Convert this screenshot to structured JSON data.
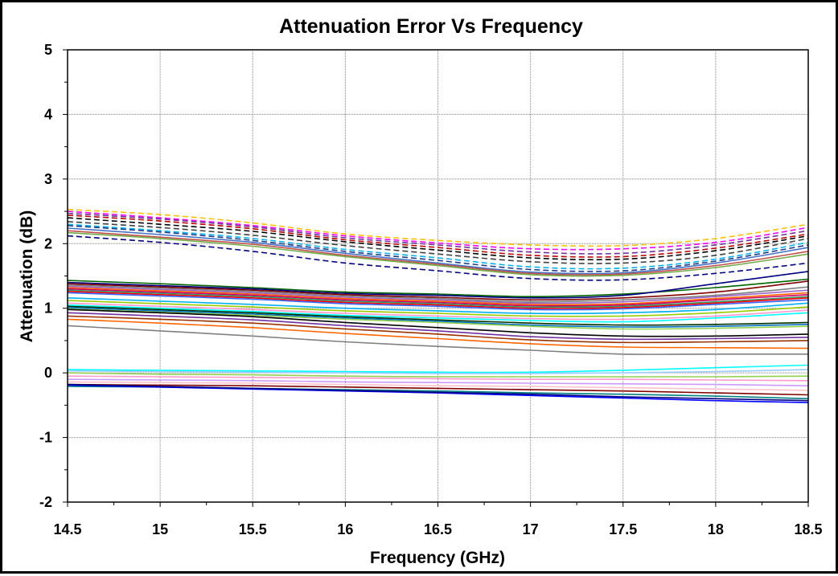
{
  "chart_data": {
    "type": "line",
    "title": "Attenuation Error Vs Frequency",
    "xlabel": "Frequency (GHz)",
    "ylabel": "Attenuation (dB)",
    "xlim": [
      14.5,
      18.5
    ],
    "ylim": [
      -2,
      5
    ],
    "x_ticks": [
      "14.5",
      "15",
      "15.5",
      "16",
      "16.5",
      "17",
      "17.5",
      "18",
      "18.5"
    ],
    "y_ticks": [
      "-2",
      "-1",
      "0",
      "1",
      "2",
      "3",
      "4",
      "5"
    ],
    "grid": true,
    "x": [
      14.5,
      15,
      15.5,
      16,
      16.5,
      17,
      17.5,
      18,
      18.5
    ],
    "series": [
      {
        "color": "#FFC000",
        "dash": true,
        "values": [
          2.53,
          2.45,
          2.32,
          2.15,
          2.05,
          1.98,
          1.97,
          2.08,
          2.3
        ]
      },
      {
        "color": "#FF00FF",
        "dash": true,
        "values": [
          2.5,
          2.4,
          2.28,
          2.12,
          2.01,
          1.92,
          1.92,
          2.02,
          2.25
        ]
      },
      {
        "color": "#7030A0",
        "dash": true,
        "values": [
          2.47,
          2.38,
          2.26,
          2.09,
          1.98,
          1.87,
          1.85,
          1.98,
          2.2
        ]
      },
      {
        "color": "#C00000",
        "dash": true,
        "values": [
          2.44,
          2.35,
          2.23,
          2.06,
          1.94,
          1.82,
          1.8,
          1.93,
          2.15
        ]
      },
      {
        "color": "#000000",
        "dash": true,
        "values": [
          2.4,
          2.3,
          2.19,
          2.03,
          1.9,
          1.78,
          1.76,
          1.89,
          2.12
        ]
      },
      {
        "color": "#404040",
        "dash": true,
        "values": [
          2.34,
          2.25,
          2.13,
          1.97,
          1.84,
          1.72,
          1.7,
          1.82,
          2.08
        ]
      },
      {
        "color": "#00B0F0",
        "dash": true,
        "values": [
          2.3,
          2.2,
          2.08,
          1.91,
          1.78,
          1.64,
          1.62,
          1.76,
          2.02
        ]
      },
      {
        "color": "#1F3C88",
        "dash": true,
        "values": [
          2.28,
          2.18,
          2.05,
          1.88,
          1.74,
          1.6,
          1.58,
          1.73,
          1.98
        ]
      },
      {
        "color": "#4472C4",
        "dash": false,
        "values": [
          2.24,
          2.14,
          2.02,
          1.85,
          1.7,
          1.56,
          1.55,
          1.7,
          1.94
        ]
      },
      {
        "color": "#C0504D",
        "dash": false,
        "values": [
          2.2,
          2.1,
          1.99,
          1.82,
          1.68,
          1.54,
          1.53,
          1.66,
          1.88
        ]
      },
      {
        "color": "#70AD47",
        "dash": false,
        "values": [
          2.17,
          2.08,
          1.96,
          1.8,
          1.66,
          1.52,
          1.51,
          1.63,
          1.84
        ]
      },
      {
        "color": "#000080",
        "dash": true,
        "values": [
          2.12,
          2.02,
          1.88,
          1.7,
          1.58,
          1.46,
          1.44,
          1.54,
          1.7
        ]
      },
      {
        "color": "#006400",
        "dash": false,
        "values": [
          1.43,
          1.38,
          1.32,
          1.25,
          1.22,
          1.18,
          1.22,
          1.32,
          1.45
        ]
      },
      {
        "color": "#000080",
        "dash": false,
        "values": [
          1.4,
          1.35,
          1.3,
          1.23,
          1.2,
          1.16,
          1.2,
          1.38,
          1.57
        ]
      },
      {
        "color": "#800000",
        "dash": false,
        "values": [
          1.38,
          1.33,
          1.28,
          1.21,
          1.17,
          1.13,
          1.16,
          1.25,
          1.42
        ]
      },
      {
        "color": "#808080",
        "dash": false,
        "values": [
          1.36,
          1.31,
          1.26,
          1.19,
          1.15,
          1.1,
          1.13,
          1.2,
          1.33
        ]
      },
      {
        "color": "#9966CC",
        "dash": false,
        "values": [
          1.34,
          1.29,
          1.24,
          1.17,
          1.13,
          1.08,
          1.1,
          1.18,
          1.28
        ]
      },
      {
        "color": "#FF6600",
        "dash": false,
        "values": [
          1.32,
          1.27,
          1.22,
          1.15,
          1.11,
          1.06,
          1.07,
          1.15,
          1.24
        ]
      },
      {
        "color": "#CC0066",
        "dash": false,
        "values": [
          1.3,
          1.25,
          1.2,
          1.13,
          1.09,
          1.04,
          1.05,
          1.13,
          1.21
        ]
      },
      {
        "color": "#339966",
        "dash": false,
        "values": [
          1.28,
          1.23,
          1.18,
          1.11,
          1.07,
          1.02,
          1.03,
          1.1,
          1.18
        ]
      },
      {
        "color": "#FF0000",
        "dash": false,
        "values": [
          1.26,
          1.21,
          1.16,
          1.09,
          1.05,
          1.0,
          1.01,
          1.08,
          1.16
        ]
      },
      {
        "color": "#3366FF",
        "dash": false,
        "values": [
          1.24,
          1.19,
          1.14,
          1.07,
          1.03,
          0.98,
          0.99,
          1.06,
          1.13
        ]
      },
      {
        "color": "#00B0F0",
        "dash": false,
        "values": [
          1.16,
          1.11,
          1.06,
          1.0,
          0.96,
          0.92,
          0.93,
          0.98,
          1.08
        ]
      },
      {
        "color": "#99CC00",
        "dash": false,
        "values": [
          1.12,
          1.07,
          1.02,
          0.96,
          0.92,
          0.88,
          0.88,
          0.93,
          1.02
        ]
      },
      {
        "color": "#FF99CC",
        "dash": false,
        "values": [
          1.08,
          1.03,
          0.98,
          0.92,
          0.88,
          0.84,
          0.83,
          0.88,
          0.97
        ]
      },
      {
        "color": "#00FFFF",
        "dash": false,
        "values": [
          1.05,
          1.0,
          0.95,
          0.89,
          0.85,
          0.81,
          0.79,
          0.85,
          0.93
        ]
      },
      {
        "color": "#003300",
        "dash": false,
        "values": [
          1.03,
          0.98,
          0.93,
          0.87,
          0.82,
          0.77,
          0.74,
          0.75,
          0.78
        ]
      },
      {
        "color": "#0070C0",
        "dash": false,
        "values": [
          1.01,
          0.96,
          0.91,
          0.85,
          0.8,
          0.74,
          0.71,
          0.72,
          0.75
        ]
      },
      {
        "color": "#92D050",
        "dash": false,
        "values": [
          0.99,
          0.94,
          0.89,
          0.83,
          0.78,
          0.72,
          0.68,
          0.69,
          0.72
        ]
      },
      {
        "color": "#000000",
        "dash": false,
        "values": [
          0.98,
          0.93,
          0.87,
          0.78,
          0.7,
          0.62,
          0.57,
          0.57,
          0.6
        ]
      },
      {
        "color": "#7030A0",
        "dash": false,
        "values": [
          0.93,
          0.88,
          0.82,
          0.73,
          0.65,
          0.56,
          0.52,
          0.53,
          0.55
        ]
      },
      {
        "color": "#993300",
        "dash": false,
        "values": [
          0.88,
          0.83,
          0.77,
          0.68,
          0.6,
          0.51,
          0.47,
          0.48,
          0.5
        ]
      },
      {
        "color": "#FF6600",
        "dash": false,
        "values": [
          0.83,
          0.77,
          0.7,
          0.61,
          0.53,
          0.45,
          0.4,
          0.39,
          0.38
        ]
      },
      {
        "color": "#808080",
        "dash": false,
        "values": [
          0.73,
          0.65,
          0.57,
          0.48,
          0.41,
          0.35,
          0.29,
          0.29,
          0.29
        ]
      },
      {
        "color": "#00FFFF",
        "dash": false,
        "values": [
          0.05,
          0.04,
          0.03,
          0.02,
          0.01,
          0.01,
          0.04,
          0.08,
          0.12
        ]
      },
      {
        "color": "#99CCFF",
        "dash": false,
        "values": [
          0.03,
          0.02,
          0.01,
          0.0,
          -0.01,
          -0.01,
          0.0,
          0.02,
          0.05
        ]
      },
      {
        "color": "#92D050",
        "dash": false,
        "values": [
          0.0,
          -0.02,
          -0.03,
          -0.05,
          -0.06,
          -0.06,
          -0.06,
          -0.06,
          -0.05
        ]
      },
      {
        "color": "#FF99CC",
        "dash": false,
        "values": [
          -0.05,
          -0.06,
          -0.07,
          -0.08,
          -0.09,
          -0.1,
          -0.1,
          -0.11,
          -0.12
        ]
      },
      {
        "color": "#CC99FF",
        "dash": false,
        "values": [
          -0.1,
          -0.11,
          -0.12,
          -0.14,
          -0.15,
          -0.16,
          -0.17,
          -0.18,
          -0.2
        ]
      },
      {
        "color": "#FFC0CB",
        "dash": false,
        "values": [
          -0.14,
          -0.15,
          -0.16,
          -0.18,
          -0.2,
          -0.21,
          -0.23,
          -0.25,
          -0.27
        ]
      },
      {
        "color": "#800000",
        "dash": false,
        "values": [
          -0.18,
          -0.19,
          -0.2,
          -0.22,
          -0.24,
          -0.26,
          -0.28,
          -0.31,
          -0.34
        ]
      },
      {
        "color": "#008080",
        "dash": false,
        "values": [
          -0.21,
          -0.22,
          -0.24,
          -0.26,
          -0.28,
          -0.31,
          -0.33,
          -0.36,
          -0.4
        ]
      },
      {
        "color": "#0000FF",
        "dash": false,
        "values": [
          -0.19,
          -0.22,
          -0.25,
          -0.28,
          -0.31,
          -0.35,
          -0.39,
          -0.43,
          -0.46
        ]
      },
      {
        "color": "#000080",
        "dash": false,
        "values": [
          -0.18,
          -0.21,
          -0.24,
          -0.27,
          -0.3,
          -0.33,
          -0.37,
          -0.4,
          -0.43
        ]
      }
    ]
  }
}
